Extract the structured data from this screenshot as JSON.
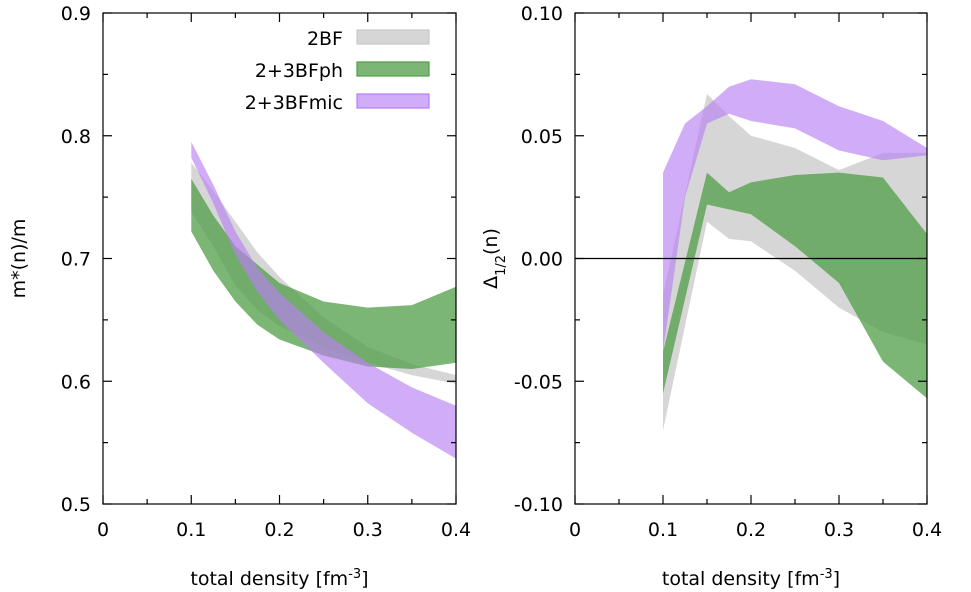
{
  "colors": {
    "2BF": "#c8c8c8",
    "2+3BFph": "#4f9e45",
    "2+3BFmic": "#b97ff2"
  },
  "chart_data": [
    {
      "type": "area",
      "title": "",
      "xlabel": {
        "text": "total density [fm",
        "sup": "-3",
        "close": "]"
      },
      "ylabel": {
        "text": "m*(n)/m"
      },
      "xlim": [
        0,
        0.4
      ],
      "ylim": [
        0.5,
        0.9
      ],
      "xticks": [
        {
          "v": 0,
          "label": "0"
        },
        {
          "v": 0.1,
          "label": "0.1"
        },
        {
          "v": 0.2,
          "label": "0.2"
        },
        {
          "v": 0.3,
          "label": "0.3"
        },
        {
          "v": 0.4,
          "label": "0.4"
        }
      ],
      "yticks": [
        {
          "v": 0.5,
          "label": "0.5"
        },
        {
          "v": 0.6,
          "label": "0.6"
        },
        {
          "v": 0.7,
          "label": "0.7"
        },
        {
          "v": 0.8,
          "label": "0.8"
        },
        {
          "v": 0.9,
          "label": "0.9"
        }
      ],
      "grid": false,
      "legend": "top-right",
      "series": [
        {
          "name": "2BF",
          "x": [
            0.1,
            0.125,
            0.15,
            0.175,
            0.2,
            0.25,
            0.3,
            0.35,
            0.4
          ],
          "lower": [
            0.738,
            0.71,
            0.678,
            0.658,
            0.645,
            0.628,
            0.615,
            0.605,
            0.598
          ],
          "upper": [
            0.778,
            0.755,
            0.73,
            0.705,
            0.685,
            0.652,
            0.628,
            0.614,
            0.605
          ]
        },
        {
          "name": "2+3BFph",
          "x": [
            0.1,
            0.125,
            0.15,
            0.175,
            0.2,
            0.25,
            0.3,
            0.35,
            0.4
          ],
          "lower": [
            0.722,
            0.69,
            0.665,
            0.646,
            0.634,
            0.621,
            0.612,
            0.61,
            0.615
          ],
          "upper": [
            0.765,
            0.735,
            0.71,
            0.695,
            0.68,
            0.665,
            0.66,
            0.662,
            0.677
          ]
        },
        {
          "name": "2+3BFmic",
          "x": [
            0.1,
            0.125,
            0.15,
            0.175,
            0.2,
            0.25,
            0.3,
            0.35,
            0.4
          ],
          "lower": [
            0.782,
            0.745,
            0.703,
            0.673,
            0.65,
            0.615,
            0.582,
            0.558,
            0.537
          ],
          "upper": [
            0.795,
            0.76,
            0.722,
            0.692,
            0.672,
            0.64,
            0.615,
            0.595,
            0.58
          ]
        }
      ]
    },
    {
      "type": "area",
      "title": "",
      "xlabel": {
        "text": "total density [fm",
        "sup": "-3",
        "close": "]"
      },
      "ylabel": {
        "text": "Δ",
        "sub": "1/2",
        "close": "(n)"
      },
      "xlim": [
        0,
        0.4
      ],
      "ylim": [
        -0.1,
        0.1
      ],
      "xticks": [
        {
          "v": 0,
          "label": "0"
        },
        {
          "v": 0.1,
          "label": "0.1"
        },
        {
          "v": 0.2,
          "label": "0.2"
        },
        {
          "v": 0.3,
          "label": "0.3"
        },
        {
          "v": 0.4,
          "label": "0.4"
        }
      ],
      "yticks": [
        {
          "v": -0.1,
          "label": "-0.10"
        },
        {
          "v": -0.05,
          "label": "-0.05"
        },
        {
          "v": 0,
          "label": "0.00"
        },
        {
          "v": 0.05,
          "label": "0.05"
        },
        {
          "v": 0.1,
          "label": "0.10"
        }
      ],
      "zero_line": true,
      "grid": false,
      "series": [
        {
          "name": "2BF",
          "x": [
            0.1,
            0.15,
            0.175,
            0.2,
            0.25,
            0.3,
            0.35,
            0.4
          ],
          "lower": [
            -0.07,
            0.015,
            0.008,
            0.007,
            -0.005,
            -0.02,
            -0.03,
            -0.035
          ],
          "upper": [
            -0.015,
            0.067,
            0.058,
            0.05,
            0.045,
            0.036,
            0.043,
            0.043
          ]
        },
        {
          "name": "2+3BFph",
          "x": [
            0.1,
            0.15,
            0.175,
            0.2,
            0.25,
            0.3,
            0.35,
            0.4
          ],
          "lower": [
            -0.055,
            0.022,
            0.02,
            0.018,
            0.005,
            -0.01,
            -0.042,
            -0.057
          ],
          "upper": [
            -0.038,
            0.035,
            0.027,
            0.031,
            0.034,
            0.035,
            0.033,
            0.01
          ]
        },
        {
          "name": "2+3BFmic",
          "x": [
            0.1,
            0.125,
            0.15,
            0.175,
            0.2,
            0.25,
            0.3,
            0.35,
            0.4
          ],
          "lower": [
            -0.038,
            0.025,
            0.055,
            0.059,
            0.056,
            0.053,
            0.044,
            0.04,
            0.042
          ],
          "upper": [
            0.035,
            0.055,
            0.062,
            0.07,
            0.073,
            0.071,
            0.062,
            0.056,
            0.045
          ]
        }
      ]
    }
  ]
}
